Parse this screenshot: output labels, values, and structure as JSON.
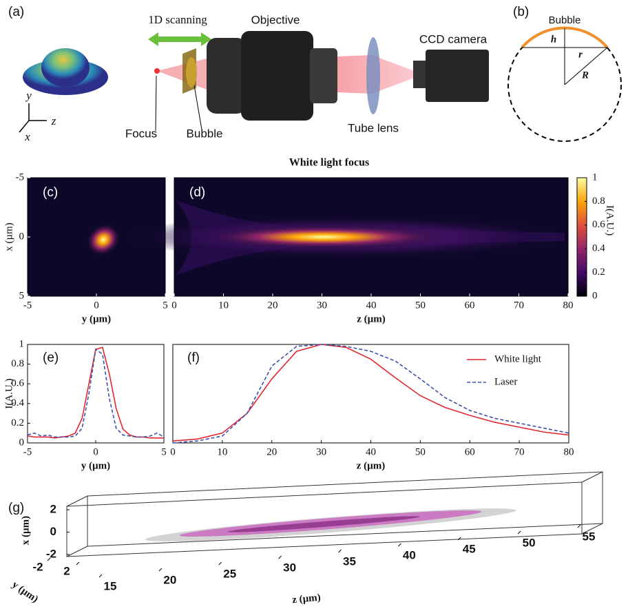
{
  "panel_labels": [
    "(a)",
    "(b)",
    "(c)",
    "(d)",
    "(e)",
    "(f)",
    "(g)"
  ],
  "diagram_a": {
    "scanning": "1D scanning",
    "objective": "Objective",
    "camera": "CCD camera",
    "focus": "Focus",
    "bubble": "Bubble",
    "tube_lens": "Tube lens",
    "axes": [
      "y",
      "z",
      "x"
    ]
  },
  "diagram_b": {
    "title": "Bubble",
    "h": "h",
    "r": "r",
    "R": "R"
  },
  "figure_title": "White light focus",
  "chart_data": [
    {
      "type": "heatmap",
      "xlabel": "y (µm)",
      "ylabel": "x (µm)",
      "xlim": [
        -5,
        5
      ],
      "xticks": [
        -5,
        0,
        5
      ],
      "ylim": [
        -5,
        5
      ],
      "yticks": [
        -5,
        0,
        5
      ],
      "y_inverted": true
    },
    {
      "type": "heatmap",
      "xlabel": "z (µm)",
      "xlim": [
        0,
        80
      ],
      "xticks": [
        0,
        10,
        20,
        30,
        40,
        50,
        60,
        70,
        80
      ],
      "colorbar": {
        "label": "I(A.U.)",
        "lim": [
          0,
          1
        ],
        "ticks": [
          0,
          0.2,
          0.4,
          0.6,
          0.8,
          1
        ]
      }
    },
    {
      "type": "line",
      "xlabel": "y (µm)",
      "ylabel": "I(A.U.)",
      "xlim": [
        -5,
        5
      ],
      "xticks": [
        -5,
        0,
        5
      ],
      "ylim": [
        0,
        1
      ],
      "yticks": [
        0,
        0.2,
        0.4,
        0.6,
        0.8,
        1
      ],
      "x": [
        -5,
        -4.5,
        -4,
        -3.5,
        -3,
        -2.5,
        -2,
        -1.5,
        -1,
        -0.5,
        0,
        0.5,
        1,
        1.5,
        2,
        2.5,
        3,
        3.5,
        4,
        4.5,
        5
      ],
      "series": [
        {
          "color": "#e3262d",
          "values": [
            0.07,
            0.06,
            0.06,
            0.06,
            0.05,
            0.06,
            0.07,
            0.1,
            0.25,
            0.6,
            0.95,
            0.97,
            0.7,
            0.35,
            0.14,
            0.08,
            0.06,
            0.06,
            0.05,
            0.05,
            0.05
          ]
        },
        {
          "color": "#3b4fae",
          "dashed": true,
          "values": [
            0.08,
            0.1,
            0.07,
            0.08,
            0.06,
            0.06,
            0.06,
            0.07,
            0.15,
            0.5,
            0.95,
            0.9,
            0.45,
            0.15,
            0.08,
            0.07,
            0.06,
            0.06,
            0.07,
            0.1,
            0.06
          ]
        }
      ]
    },
    {
      "type": "line",
      "xlabel": "z (µm)",
      "xlim": [
        0,
        80
      ],
      "xticks": [
        0,
        10,
        20,
        30,
        40,
        50,
        60,
        70,
        80
      ],
      "ylim": [
        0,
        1
      ],
      "legend": "upper right",
      "x": [
        0,
        5,
        10,
        15,
        20,
        25,
        30,
        35,
        40,
        45,
        50,
        55,
        60,
        65,
        70,
        75,
        80
      ],
      "series": [
        {
          "name": "White light",
          "color": "#e3262d",
          "values": [
            0.02,
            0.04,
            0.1,
            0.3,
            0.65,
            0.93,
            1.0,
            0.97,
            0.85,
            0.66,
            0.48,
            0.36,
            0.28,
            0.21,
            0.16,
            0.11,
            0.08
          ]
        },
        {
          "name": "Laser",
          "color": "#3b4fae",
          "dashed": true,
          "values": [
            0.0,
            0.02,
            0.07,
            0.3,
            0.78,
            0.98,
            1.0,
            0.98,
            0.93,
            0.83,
            0.65,
            0.46,
            0.33,
            0.25,
            0.2,
            0.15,
            0.1
          ]
        }
      ]
    },
    {
      "type": "surface3d",
      "xlabel": "z (µm)",
      "ylabel": "x (µm)",
      "zlabel": "y (µm)",
      "xlim": [
        15,
        55
      ],
      "xticks": [
        15,
        20,
        25,
        30,
        35,
        40,
        45,
        50,
        55
      ],
      "ylim": [
        -2,
        2
      ],
      "yticks": [
        2,
        0,
        -2
      ],
      "zlim": [
        -2,
        2
      ],
      "zticks": [
        -2,
        2
      ]
    }
  ]
}
